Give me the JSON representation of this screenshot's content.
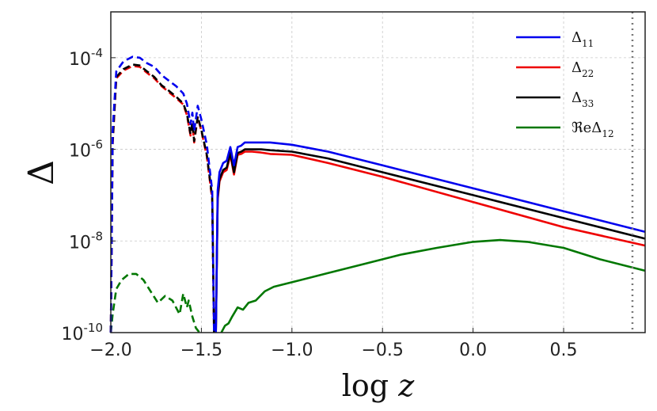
{
  "chart_data": {
    "type": "line",
    "xlabel": "log z",
    "ylabel": "Δ",
    "xlim": [
      -2.0,
      0.95
    ],
    "ylim_log10": [
      -10,
      -3
    ],
    "yscale": "log",
    "grid": true,
    "legend_position": "top-right",
    "x_ticks": [
      -2.0,
      -1.5,
      -1.0,
      -0.5,
      0.0,
      0.5
    ],
    "x_tick_labels": [
      "−2.0",
      "−1.5",
      "−1.0",
      "−0.5",
      "0.0",
      "0.5"
    ],
    "y_ticks_log10": [
      -10,
      -8,
      -6,
      -4
    ],
    "y_tick_labels": [
      {
        "base": "10",
        "exp": "-10"
      },
      {
        "base": "10",
        "exp": "-8"
      },
      {
        "base": "10",
        "exp": "-6"
      },
      {
        "base": "10",
        "exp": "-4"
      }
    ],
    "vline": {
      "x": 0.88,
      "style": "dotted",
      "color": "#777777"
    },
    "series": [
      {
        "name": "Δ11",
        "label_base": "Δ",
        "label_sub": "11",
        "color": "#0000ee",
        "dashed": {
          "x": [
            -2.0,
            -1.99,
            -1.97,
            -1.93,
            -1.88,
            -1.84,
            -1.8,
            -1.76,
            -1.72,
            -1.68,
            -1.64,
            -1.6,
            -1.58,
            -1.56,
            -1.55,
            -1.54,
            -1.52,
            -1.5,
            -1.47,
            -1.44,
            -1.43
          ],
          "log10_y": [
            -10.0,
            -5.6,
            -4.3,
            -4.08,
            -3.98,
            -4.0,
            -4.12,
            -4.2,
            -4.38,
            -4.5,
            -4.62,
            -4.78,
            -5.0,
            -5.45,
            -5.2,
            -5.6,
            -5.05,
            -5.35,
            -5.9,
            -6.9,
            -10.0
          ]
        },
        "solid": {
          "x": [
            -1.42,
            -1.41,
            -1.4,
            -1.38,
            -1.36,
            -1.34,
            -1.32,
            -1.3,
            -1.28,
            -1.26,
            -1.22,
            -1.17,
            -1.12,
            -1.0,
            -0.8,
            -0.5,
            0.0,
            0.5,
            0.95
          ],
          "log10_y": [
            -10.0,
            -6.9,
            -6.5,
            -6.3,
            -6.25,
            -5.95,
            -6.35,
            -5.95,
            -5.92,
            -5.85,
            -5.85,
            -5.85,
            -5.85,
            -5.9,
            -6.05,
            -6.35,
            -6.85,
            -7.35,
            -7.8
          ]
        }
      },
      {
        "name": "Δ22",
        "label_base": "Δ",
        "label_sub": "22",
        "color": "#ee0000",
        "dashed": {
          "x": [
            -2.0,
            -1.99,
            -1.97,
            -1.93,
            -1.88,
            -1.84,
            -1.8,
            -1.76,
            -1.72,
            -1.68,
            -1.64,
            -1.6,
            -1.58,
            -1.56,
            -1.55,
            -1.54,
            -1.52,
            -1.5,
            -1.47,
            -1.44,
            -1.43
          ],
          "log10_y": [
            -10.0,
            -5.9,
            -4.45,
            -4.28,
            -4.18,
            -4.2,
            -4.33,
            -4.45,
            -4.62,
            -4.75,
            -4.88,
            -5.02,
            -5.25,
            -5.7,
            -5.45,
            -5.85,
            -5.3,
            -5.6,
            -6.15,
            -7.1,
            -10.0
          ]
        },
        "solid": {
          "x": [
            -1.42,
            -1.41,
            -1.4,
            -1.38,
            -1.36,
            -1.34,
            -1.32,
            -1.3,
            -1.28,
            -1.26,
            -1.22,
            -1.17,
            -1.12,
            -1.0,
            -0.8,
            -0.5,
            0.0,
            0.5,
            0.95
          ],
          "log10_y": [
            -10.0,
            -7.1,
            -6.7,
            -6.5,
            -6.45,
            -6.12,
            -6.55,
            -6.12,
            -6.1,
            -6.05,
            -6.05,
            -6.07,
            -6.1,
            -6.12,
            -6.3,
            -6.6,
            -7.15,
            -7.7,
            -8.1
          ]
        }
      },
      {
        "name": "Δ33",
        "label_base": "Δ",
        "label_sub": "33",
        "color": "#000000",
        "dashed": {
          "x": [
            -2.0,
            -1.99,
            -1.97,
            -1.93,
            -1.88,
            -1.84,
            -1.8,
            -1.76,
            -1.72,
            -1.68,
            -1.64,
            -1.6,
            -1.58,
            -1.56,
            -1.55,
            -1.54,
            -1.52,
            -1.5,
            -1.47,
            -1.44,
            -1.43
          ],
          "log10_y": [
            -10.0,
            -5.85,
            -4.42,
            -4.25,
            -4.15,
            -4.17,
            -4.3,
            -4.42,
            -4.6,
            -4.72,
            -4.85,
            -5.0,
            -5.22,
            -5.67,
            -5.42,
            -5.82,
            -5.28,
            -5.58,
            -6.12,
            -7.05,
            -10.0
          ]
        },
        "solid": {
          "x": [
            -1.42,
            -1.41,
            -1.4,
            -1.38,
            -1.36,
            -1.34,
            -1.32,
            -1.3,
            -1.28,
            -1.26,
            -1.22,
            -1.17,
            -1.12,
            -1.0,
            -0.8,
            -0.5,
            0.0,
            0.5,
            0.95
          ],
          "log10_y": [
            -10.0,
            -7.05,
            -6.65,
            -6.45,
            -6.4,
            -6.08,
            -6.5,
            -6.08,
            -6.05,
            -6.0,
            -6.0,
            -6.0,
            -6.02,
            -6.05,
            -6.2,
            -6.5,
            -7.0,
            -7.5,
            -7.95
          ]
        }
      },
      {
        "name": "ℜeΔ12",
        "label_base": "ℜeΔ",
        "label_sub": "12",
        "color": "#007700",
        "dashed": {
          "x": [
            -2.0,
            -1.99,
            -1.97,
            -1.94,
            -1.9,
            -1.86,
            -1.82,
            -1.78,
            -1.74,
            -1.7,
            -1.66,
            -1.62,
            -1.6,
            -1.58,
            -1.57,
            -1.55,
            -1.53,
            -1.51
          ],
          "log10_y": [
            -10.0,
            -9.6,
            -9.05,
            -8.85,
            -8.72,
            -8.72,
            -8.85,
            -9.1,
            -9.35,
            -9.2,
            -9.3,
            -9.6,
            -9.15,
            -9.45,
            -9.3,
            -9.65,
            -9.9,
            -10.0
          ]
        },
        "solid": {
          "x": [
            -1.39,
            -1.37,
            -1.35,
            -1.33,
            -1.3,
            -1.27,
            -1.24,
            -1.2,
            -1.15,
            -1.1,
            -1.0,
            -0.8,
            -0.6,
            -0.4,
            -0.2,
            0.0,
            0.15,
            0.3,
            0.5,
            0.7,
            0.95
          ],
          "log10_y": [
            -10.0,
            -9.85,
            -9.8,
            -9.65,
            -9.45,
            -9.5,
            -9.35,
            -9.3,
            -9.1,
            -9.0,
            -8.9,
            -8.7,
            -8.5,
            -8.3,
            -8.15,
            -8.02,
            -7.98,
            -8.02,
            -8.15,
            -8.4,
            -8.65
          ]
        }
      }
    ]
  }
}
